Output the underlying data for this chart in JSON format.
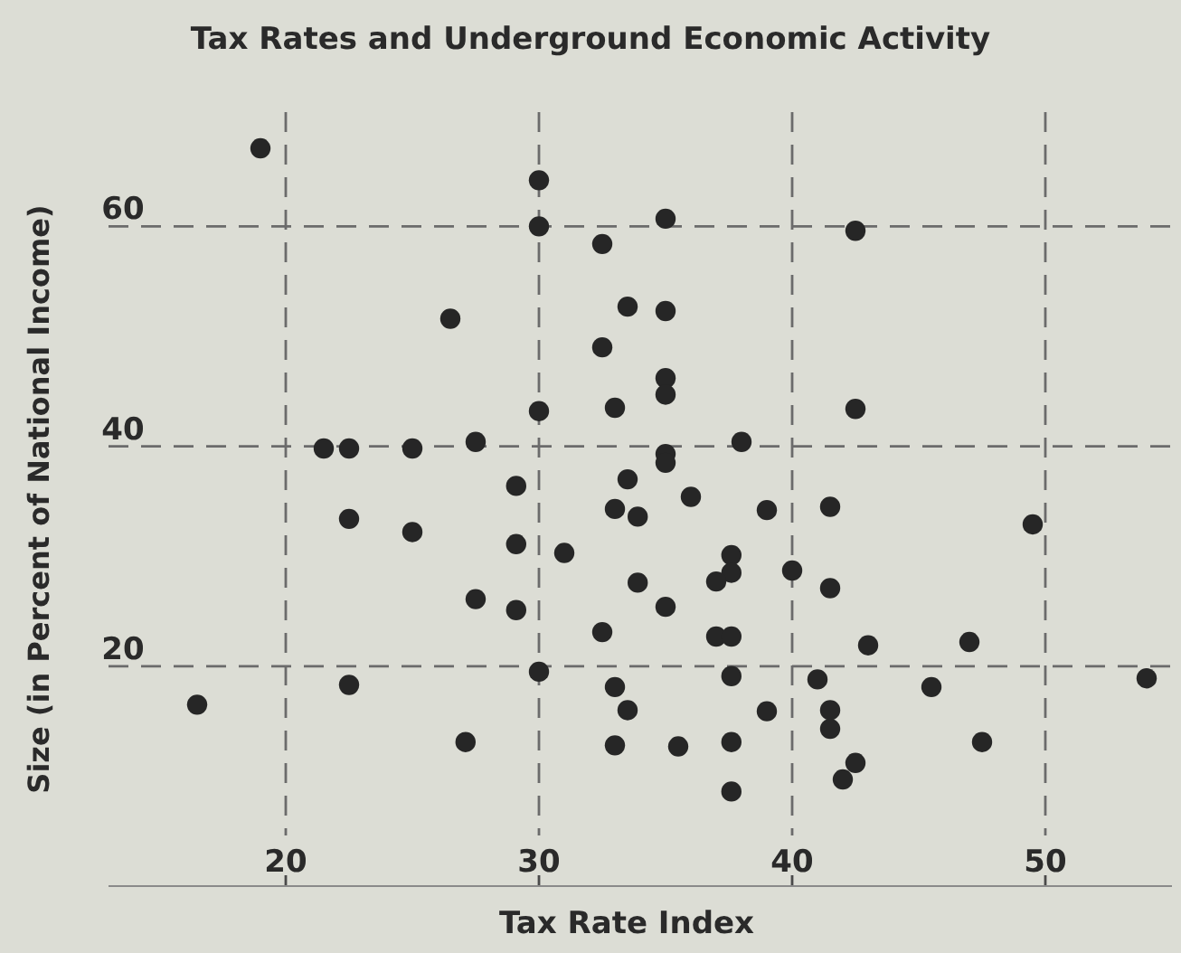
{
  "chart_data": {
    "type": "scatter",
    "title": "Tax Rates and Underground Economic Activity",
    "xlabel": "Tax Rate Index",
    "ylabel": "Size (in Percent of National Income)",
    "xlim": [
      13,
      55
    ],
    "ylim": [
      0,
      70
    ],
    "xticks": [
      20,
      30,
      40,
      50
    ],
    "yticks": [
      20,
      40,
      60
    ],
    "grid": true,
    "line_style": "dashed",
    "marker": "circle",
    "series": [
      {
        "color": "#262626",
        "x": [
          19.0,
          30.0,
          30.0,
          32.5,
          33.5,
          26.5,
          32.5,
          30.0,
          33.0,
          21.5,
          22.5,
          25.0,
          27.5,
          29.1,
          33.5,
          35.0,
          42.5,
          35.0,
          35.0,
          35.0,
          42.5,
          38.0,
          35.0,
          35.0,
          36.0,
          22.5,
          25.0,
          29.1,
          31.0,
          33.0,
          33.9,
          33.9,
          27.5,
          29.1,
          32.5,
          30.0,
          22.5,
          16.5,
          33.0,
          33.5,
          27.1,
          33.0,
          39.0,
          41.5,
          49.5,
          37.6,
          37.6,
          37.0,
          40.0,
          41.5,
          35.0,
          37.0,
          37.6,
          43.0,
          47.0,
          37.6,
          41.0,
          45.5,
          54.0,
          39.0,
          41.5,
          41.5,
          35.5,
          37.6,
          47.5,
          42.5,
          42.0,
          37.6
        ],
        "values": [
          67.1,
          64.2,
          60.0,
          58.4,
          52.7,
          51.6,
          49.0,
          43.2,
          43.5,
          39.8,
          39.8,
          39.8,
          40.4,
          36.4,
          37.0,
          60.7,
          59.6,
          52.3,
          46.2,
          44.7,
          43.4,
          40.4,
          39.3,
          38.5,
          35.4,
          33.4,
          32.2,
          31.1,
          30.3,
          34.3,
          33.6,
          27.6,
          26.1,
          25.1,
          23.1,
          19.5,
          18.3,
          16.5,
          18.1,
          16.0,
          13.1,
          12.8,
          34.2,
          34.5,
          32.9,
          30.1,
          28.5,
          27.7,
          28.7,
          27.1,
          25.4,
          22.7,
          22.7,
          21.9,
          22.2,
          19.1,
          18.8,
          18.1,
          18.9,
          15.9,
          16.0,
          14.3,
          12.7,
          13.1,
          13.1,
          11.2,
          9.7,
          8.6
        ]
      }
    ]
  }
}
